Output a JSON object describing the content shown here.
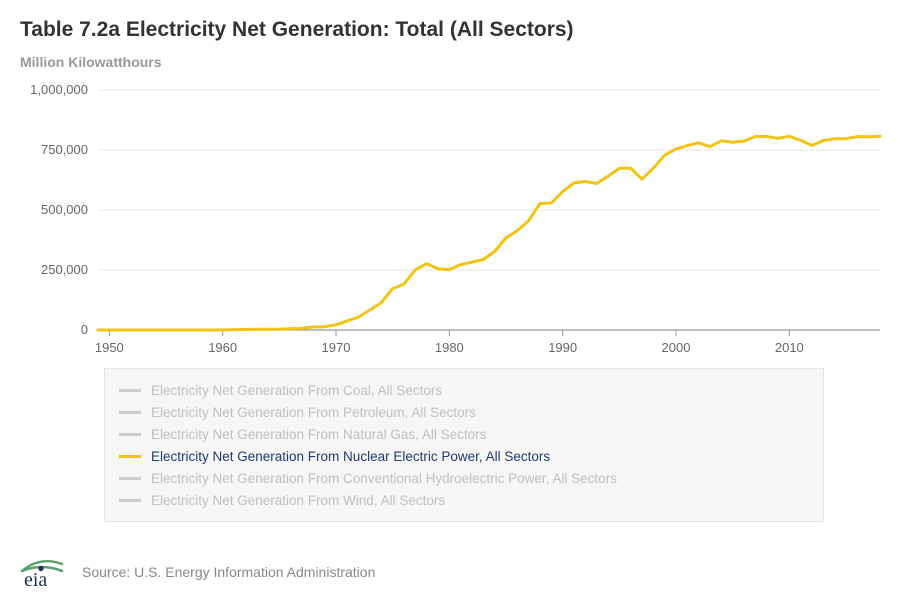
{
  "title": "Table 7.2a Electricity Net Generation: Total (All Sectors)",
  "subtitle": "Million Kilowatthours",
  "source": "Source: U.S. Energy Information Administration",
  "chart": {
    "type": "line",
    "background_color": "#ffffff",
    "grid_color": "#e6e6e6",
    "axis_color": "#cccccc",
    "baseline_color": "#999999",
    "tick_font_size": 13,
    "tick_color": "#666666",
    "x": {
      "min": 1949,
      "max": 2018,
      "ticks": [
        1950,
        1960,
        1970,
        1980,
        1990,
        2000,
        2010
      ],
      "tick_labels": [
        "1950",
        "1960",
        "1970",
        "1980",
        "1990",
        "2000",
        "2010"
      ]
    },
    "y": {
      "min": 0,
      "max": 1000000,
      "ticks": [
        0,
        250000,
        500000,
        750000,
        1000000
      ],
      "tick_labels": [
        "0",
        "250,000",
        "500,000",
        "750,000",
        "1,000,000"
      ]
    },
    "active_series_index": 3,
    "series": [
      {
        "name": "Electricity Net Generation From Coal, All Sectors",
        "active": false,
        "color_active": "#1f77b4",
        "color_inactive": "#cccccc"
      },
      {
        "name": "Electricity Net Generation From Petroleum, All Sectors",
        "active": false,
        "color_active": "#ff7f0e",
        "color_inactive": "#cccccc"
      },
      {
        "name": "Electricity Net Generation From Natural Gas, All Sectors",
        "active": false,
        "color_active": "#2ca02c",
        "color_inactive": "#cccccc"
      },
      {
        "name": "Electricity Net Generation From Nuclear Electric Power, All Sectors",
        "active": true,
        "color_active": "#f2c313",
        "color_inactive": "#cccccc",
        "line_width": 3,
        "data": [
          [
            1949,
            0
          ],
          [
            1950,
            0
          ],
          [
            1951,
            0
          ],
          [
            1952,
            0
          ],
          [
            1953,
            0
          ],
          [
            1954,
            0
          ],
          [
            1955,
            0
          ],
          [
            1956,
            0
          ],
          [
            1957,
            10
          ],
          [
            1958,
            165
          ],
          [
            1959,
            188
          ],
          [
            1960,
            518
          ],
          [
            1961,
            1692
          ],
          [
            1962,
            2270
          ],
          [
            1963,
            3212
          ],
          [
            1964,
            3343
          ],
          [
            1965,
            3657
          ],
          [
            1966,
            5520
          ],
          [
            1967,
            7655
          ],
          [
            1968,
            12528
          ],
          [
            1969,
            13928
          ],
          [
            1970,
            21804
          ],
          [
            1971,
            38105
          ],
          [
            1972,
            54091
          ],
          [
            1973,
            83479
          ],
          [
            1974,
            113976
          ],
          [
            1975,
            172505
          ],
          [
            1976,
            191104
          ],
          [
            1977,
            250883
          ],
          [
            1978,
            276403
          ],
          [
            1979,
            255155
          ],
          [
            1980,
            251116
          ],
          [
            1981,
            272674
          ],
          [
            1982,
            282773
          ],
          [
            1983,
            293677
          ],
          [
            1984,
            327634
          ],
          [
            1985,
            383691
          ],
          [
            1986,
            414038
          ],
          [
            1987,
            455270
          ],
          [
            1988,
            526973
          ],
          [
            1989,
            529355
          ],
          [
            1990,
            576862
          ],
          [
            1991,
            612565
          ],
          [
            1992,
            618776
          ],
          [
            1993,
            610291
          ],
          [
            1994,
            640440
          ],
          [
            1995,
            673402
          ],
          [
            1996,
            674729
          ],
          [
            1997,
            628644
          ],
          [
            1998,
            673702
          ],
          [
            1999,
            728254
          ],
          [
            2000,
            753893
          ],
          [
            2001,
            768826
          ],
          [
            2002,
            780064
          ],
          [
            2003,
            763733
          ],
          [
            2004,
            788528
          ],
          [
            2005,
            781986
          ],
          [
            2006,
            787219
          ],
          [
            2007,
            806425
          ],
          [
            2008,
            806208
          ],
          [
            2009,
            798855
          ],
          [
            2010,
            806968
          ],
          [
            2011,
            790204
          ],
          [
            2012,
            769331
          ],
          [
            2013,
            789016
          ],
          [
            2014,
            797166
          ],
          [
            2015,
            797178
          ],
          [
            2016,
            805694
          ],
          [
            2017,
            804950
          ],
          [
            2018,
            807078
          ]
        ]
      },
      {
        "name": "Electricity Net Generation From Conventional Hydroelectric Power, All Sectors",
        "active": false,
        "color_active": "#9467bd",
        "color_inactive": "#cccccc"
      },
      {
        "name": "Electricity Net Generation From Wind, All Sectors",
        "active": false,
        "color_active": "#8c564b",
        "color_inactive": "#cccccc"
      }
    ]
  },
  "legend": {
    "background_color": "#f6f6f6",
    "border_color": "#e5e5e5",
    "inactive_text_color": "#bfbfbf",
    "active_text_color": "#1f3b70",
    "swatch_inactive_color": "#cccccc",
    "font_size": 13.5
  },
  "logo": {
    "swoosh_color": "#5a9e6f",
    "dot_color": "#19324f",
    "text_color": "#19324f",
    "text": "eia"
  }
}
